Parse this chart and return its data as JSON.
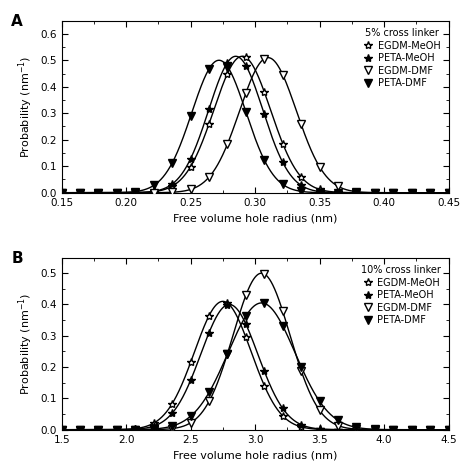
{
  "panel_A": {
    "title": "5% cross linker",
    "xlabel": "Free volume hole radius (nm)",
    "xlim": [
      0.15,
      0.45
    ],
    "ylim": [
      0.0,
      0.65
    ],
    "xticks": [
      0.15,
      0.2,
      0.25,
      0.3,
      0.35,
      0.4,
      0.45
    ],
    "yticks": [
      0.0,
      0.1,
      0.2,
      0.3,
      0.4,
      0.5,
      0.6
    ],
    "series": [
      {
        "label": "EGDM-MeOH",
        "mean": 0.29,
        "sigma": 0.022,
        "peak": 0.515,
        "marker": "star_open",
        "marker_size": 6,
        "filled": false
      },
      {
        "label": "PETA-MeOH",
        "mean": 0.285,
        "sigma": 0.021,
        "peak": 0.515,
        "marker": "star_filled",
        "marker_size": 6,
        "filled": true
      },
      {
        "label": "EGDM-DMF",
        "mean": 0.31,
        "sigma": 0.022,
        "peak": 0.51,
        "marker": "tri_open",
        "marker_size": 6,
        "filled": false
      },
      {
        "label": "PETA-DMF",
        "mean": 0.272,
        "sigma": 0.021,
        "peak": 0.5,
        "marker": "tri_filled",
        "marker_size": 6,
        "filled": true
      }
    ]
  },
  "panel_B": {
    "title": "10% cross linker",
    "xlabel": "Free volume hole radius (nm)",
    "xlim": [
      1.5,
      4.5
    ],
    "ylim": [
      0.0,
      0.55
    ],
    "xticks": [
      1.5,
      2.0,
      2.5,
      3.0,
      3.5,
      4.0,
      4.5
    ],
    "yticks": [
      0.0,
      0.1,
      0.2,
      0.3,
      0.4,
      0.5
    ],
    "series": [
      {
        "label": "EGDM-MeOH",
        "mean": 2.75,
        "sigma": 0.22,
        "peak": 0.41,
        "marker": "star_open",
        "marker_size": 6,
        "filled": false
      },
      {
        "label": "PETA-MeOH",
        "mean": 2.8,
        "sigma": 0.22,
        "peak": 0.4,
        "marker": "star_filled",
        "marker_size": 6,
        "filled": true
      },
      {
        "label": "EGDM-DMF",
        "mean": 3.05,
        "sigma": 0.22,
        "peak": 0.5,
        "marker": "tri_open",
        "marker_size": 6,
        "filled": false
      },
      {
        "label": "PETA-DMF",
        "mean": 3.05,
        "sigma": 0.26,
        "peak": 0.405,
        "marker": "tri_filled",
        "marker_size": 6,
        "filled": true
      }
    ]
  },
  "label_A": "A",
  "label_B": "B",
  "color": "black",
  "linewidth": 1.0
}
